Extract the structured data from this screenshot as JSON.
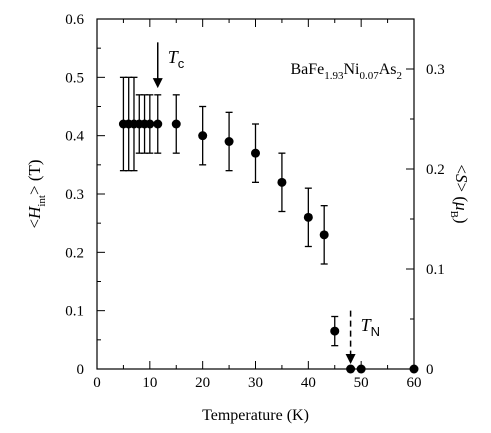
{
  "chart_data": {
    "type": "scatter",
    "xlabel": "Temperature (K)",
    "ylabel": {
      "prefix": "<",
      "var": "H",
      "sub": "int",
      "suffix": "> (T)"
    },
    "y2label": {
      "prefix": "<",
      "var": "S",
      "mid": "> (",
      "mu": "μ",
      "sub": "B",
      "suffix": ")"
    },
    "xlim": [
      0,
      60
    ],
    "ylim": [
      0,
      0.6
    ],
    "y2lim": [
      0,
      0.35
    ],
    "xticks": [
      "0",
      "10",
      "20",
      "30",
      "40",
      "50",
      "60"
    ],
    "yticks": [
      "0",
      "0.1",
      "0.2",
      "0.3",
      "0.4",
      "0.5",
      "0.6"
    ],
    "y2ticks": [
      "0",
      "0.1",
      "0.2",
      "0.3"
    ],
    "compound": {
      "parts": [
        {
          "t": "BaFe",
          "sub": false
        },
        {
          "t": "1.93",
          "sub": true
        },
        {
          "t": "Ni",
          "sub": false
        },
        {
          "t": "0.07",
          "sub": true
        },
        {
          "t": "As",
          "sub": false
        },
        {
          "t": "2",
          "sub": true
        }
      ]
    },
    "annotations": [
      {
        "var": "T",
        "sub": "c",
        "x": 11.5,
        "style": "solid"
      },
      {
        "var": "T",
        "sub": "N",
        "x": 48,
        "style": "dashed"
      }
    ],
    "series": [
      {
        "x": [
          5,
          6,
          7,
          8,
          9,
          10,
          11.5,
          15,
          20,
          25,
          30,
          35,
          40,
          43,
          45,
          48,
          50,
          60
        ],
        "y": [
          0.42,
          0.42,
          0.42,
          0.42,
          0.42,
          0.42,
          0.42,
          0.42,
          0.4,
          0.39,
          0.37,
          0.32,
          0.26,
          0.23,
          0.065,
          0,
          0,
          0
        ],
        "yerr": [
          0.08,
          0.08,
          0.08,
          0.05,
          0.05,
          0.05,
          0.05,
          0.05,
          0.05,
          0.05,
          0.05,
          0.05,
          0.05,
          0.05,
          0.025,
          0,
          0,
          0
        ]
      }
    ]
  }
}
